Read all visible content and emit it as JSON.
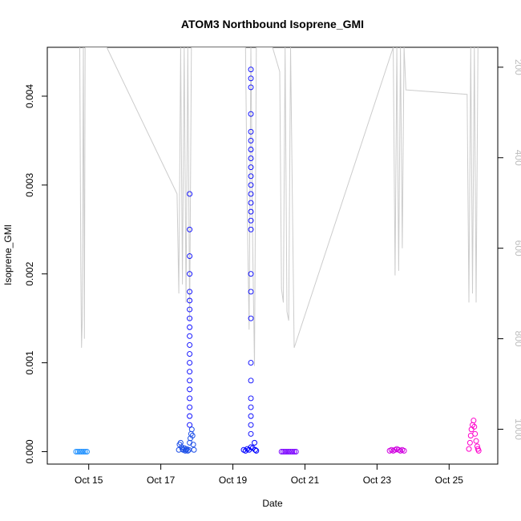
{
  "chart_data": {
    "type": "scatter",
    "title": "ATOM3 Northbound Isoprene_GMI",
    "xlabel": "Date",
    "ylabel": "Isoprene_GMI",
    "x_ticks": [
      "Oct 15",
      "Oct 17",
      "Oct 19",
      "Oct 21",
      "Oct 23",
      "Oct 25"
    ],
    "x_tick_days": [
      15,
      17,
      19,
      21,
      23,
      25
    ],
    "xlim_days": [
      13.85,
      26.35
    ],
    "y_ticks": [
      "0.000",
      "0.001",
      "0.002",
      "0.003",
      "0.004"
    ],
    "y_tick_values": [
      0.0,
      0.001,
      0.002,
      0.003,
      0.004
    ],
    "ylim": [
      -0.00014,
      0.00455
    ],
    "right_axis": {
      "ticks": [
        "200",
        "400",
        "600",
        "800",
        "1000"
      ],
      "tick_values": [
        200,
        400,
        600,
        800,
        1000
      ],
      "lim": [
        1077,
        156
      ],
      "color": "#bdbdbd"
    },
    "grid": false,
    "series": [
      {
        "color": "#1E90FF",
        "x": [
          14.65,
          14.7,
          14.75,
          14.8,
          14.85,
          14.9,
          14.95
        ],
        "y": [
          0,
          0,
          0,
          0,
          0,
          0,
          0
        ]
      },
      {
        "color": "#1E50E8",
        "x": [
          17.5,
          17.52,
          17.55,
          17.58,
          17.6,
          17.62,
          17.65,
          17.68,
          17.7,
          17.72,
          17.75,
          17.78,
          17.8,
          17.82,
          17.84,
          17.86,
          17.88,
          17.9,
          17.92
        ],
        "y": [
          2e-05,
          8e-05,
          0.0001,
          5e-05,
          3e-05,
          2e-05,
          4e-05,
          1e-05,
          2e-05,
          3e-05,
          1e-05,
          2e-05,
          0.0001,
          0.00015,
          0.0002,
          0.00025,
          0.00018,
          8e-05,
          2e-05
        ]
      },
      {
        "color": "#0000FF",
        "x": [
          19.3,
          19.35,
          19.4,
          19.45,
          19.5,
          19.55,
          19.6,
          19.62,
          19.65
        ],
        "y": [
          2e-05,
          1e-05,
          3e-05,
          2e-05,
          5e-05,
          4e-05,
          0.0001,
          2e-05,
          1e-05
        ]
      },
      {
        "color": "#7B00FF",
        "x": [
          20.35,
          20.4,
          20.45,
          20.5,
          20.55,
          20.6,
          20.65,
          20.7,
          20.75
        ],
        "y": [
          0,
          0,
          0,
          0,
          0,
          0,
          0,
          0,
          0
        ]
      },
      {
        "color": "#D000E0",
        "x": [
          23.35,
          23.4,
          23.45,
          23.5,
          23.55,
          23.6,
          23.65,
          23.7,
          23.75
        ],
        "y": [
          1e-05,
          2e-05,
          1e-05,
          2e-05,
          3e-05,
          2e-05,
          1e-05,
          2e-05,
          1e-05
        ]
      },
      {
        "color": "#FF00CC",
        "x": [
          25.55,
          25.58,
          25.6,
          25.62,
          25.65,
          25.68,
          25.7,
          25.72,
          25.75,
          25.78,
          25.8,
          25.82
        ],
        "y": [
          3e-05,
          0.0001,
          0.00018,
          0.00025,
          0.0003,
          0.00035,
          0.00028,
          0.0002,
          0.00012,
          6e-05,
          3e-05,
          1e-05
        ]
      }
    ],
    "outliers": {
      "color": "#0000FF",
      "x": [
        17.8,
        17.8,
        17.8,
        17.8,
        17.8,
        17.8,
        17.8,
        17.8,
        17.8,
        17.8,
        17.8,
        17.8,
        17.8,
        17.8,
        17.8,
        17.8,
        17.8,
        17.8,
        17.8,
        17.8,
        19.5,
        19.5,
        19.5,
        19.5,
        19.5,
        19.5,
        19.5,
        19.5,
        19.5,
        19.5,
        19.5,
        19.5,
        19.5,
        19.5,
        19.5,
        19.5,
        19.5,
        19.5,
        19.5,
        19.5,
        19.5,
        19.5,
        19.5,
        19.5,
        19.5,
        19.5
      ],
      "y": [
        0.0003,
        0.0004,
        0.0005,
        0.0006,
        0.0007,
        0.0008,
        0.0009,
        0.001,
        0.0011,
        0.0012,
        0.0013,
        0.0014,
        0.0015,
        0.0016,
        0.0017,
        0.0018,
        0.002,
        0.0022,
        0.0025,
        0.0029,
        0.0002,
        0.0003,
        0.0004,
        0.0005,
        0.0006,
        0.0008,
        0.001,
        0.0015,
        0.0018,
        0.002,
        0.0025,
        0.0026,
        0.0027,
        0.0028,
        0.0029,
        0.003,
        0.0031,
        0.0032,
        0.0033,
        0.0034,
        0.0035,
        0.0036,
        0.0038,
        0.0041,
        0.0042,
        0.0043
      ]
    },
    "pressure_line": {
      "color": "#cccccc",
      "x": [
        14.75,
        14.78,
        14.8,
        14.82,
        14.85,
        14.88,
        14.9,
        15.5,
        17.45,
        17.5,
        17.55,
        17.6,
        17.65,
        17.7,
        17.75,
        17.8,
        17.85,
        17.9,
        19.35,
        19.4,
        19.45,
        19.5,
        19.55,
        19.6,
        19.65,
        20.1,
        20.3,
        20.35,
        20.4,
        20.45,
        20.5,
        20.55,
        20.6,
        20.7,
        23.45,
        23.5,
        23.55,
        23.6,
        23.65,
        23.7,
        23.75,
        23.8,
        25.5,
        25.55,
        25.6,
        25.65,
        25.7,
        25.75,
        25.8
      ],
      "y": [
        156,
        640,
        820,
        760,
        156,
        800,
        156,
        156,
        480,
        700,
        156,
        680,
        156,
        720,
        156,
        760,
        156,
        156,
        156,
        520,
        780,
        156,
        600,
        860,
        156,
        156,
        210,
        690,
        720,
        156,
        740,
        760,
        156,
        820,
        156,
        660,
        156,
        650,
        156,
        600,
        156,
        250,
        260,
        720,
        156,
        700,
        156,
        720,
        156
      ]
    }
  }
}
